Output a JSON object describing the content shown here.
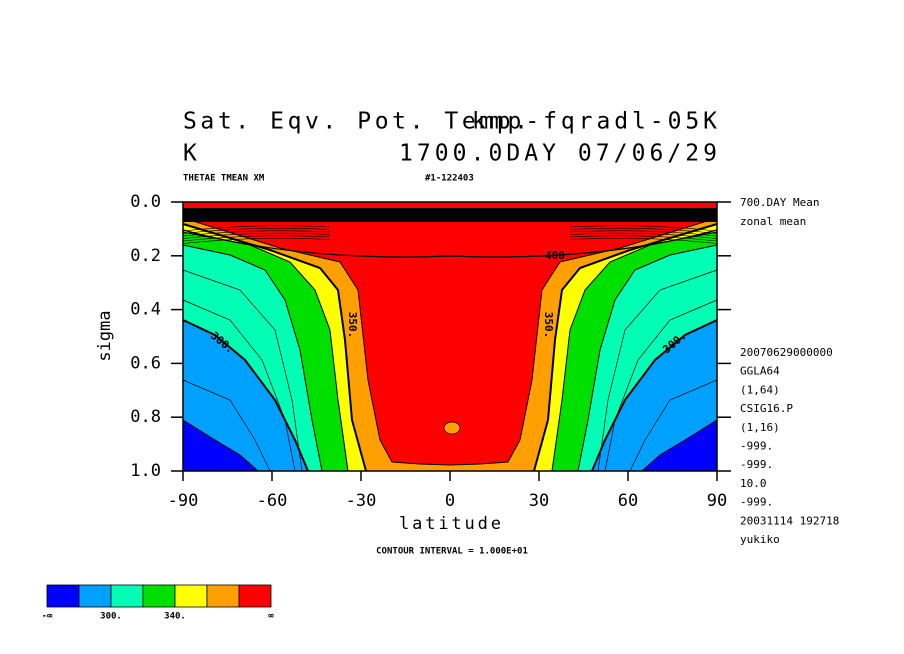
{
  "chart_data": {
    "type": "contour",
    "title": "Sat. Eqv. Pot. Temp.",
    "run_name": "kmp-fqradl-05K",
    "units": "K",
    "time_label": "1700.0DAY 07/06/29",
    "variable_label": "THETAE TMEAN XM",
    "run_id": "#1-122403",
    "x_label": "latitude",
    "y_label": "sigma",
    "contour_interval": "CONTOUR INTERVAL = 1.000E+01",
    "xlim": [
      -90,
      90
    ],
    "xticks": [
      -90,
      -60,
      -30,
      0,
      30,
      60,
      90
    ],
    "ylim": [
      1.0,
      0.0
    ],
    "yticks": [
      {
        "value": 0.0,
        "label": "0.0"
      },
      {
        "value": 0.2,
        "label": "0.2"
      },
      {
        "value": 0.4,
        "label": "0.4"
      },
      {
        "value": 0.6,
        "label": "0.6"
      },
      {
        "value": 0.8,
        "label": "0.8"
      },
      {
        "value": 1.0,
        "label": "1.0"
      }
    ],
    "side_notes_top": [
      "700.DAY Mean",
      "zonal mean"
    ],
    "side_notes": [
      "20070629000000",
      "GGLA64",
      "(1,64)",
      "CSIG16.P",
      "(1,16)",
      "-999.",
      "-999.",
      "10.0",
      "-999.",
      "20031114 192718",
      "yukiko"
    ],
    "contour_labels": [
      "300.",
      "350.",
      "400",
      "350.",
      "300."
    ],
    "colorbar": {
      "colors": [
        "#0000ff",
        "#00a0ff",
        "#00ffb4",
        "#00e000",
        "#ffff00",
        "#ffa000",
        "#ff0000"
      ],
      "levels": [
        280,
        300,
        320,
        340,
        360,
        380
      ],
      "ticks": [
        {
          "value": 300,
          "label": "300."
        },
        {
          "value": 340,
          "label": "340."
        }
      ],
      "ends": [
        "-∞",
        "∞"
      ]
    }
  }
}
